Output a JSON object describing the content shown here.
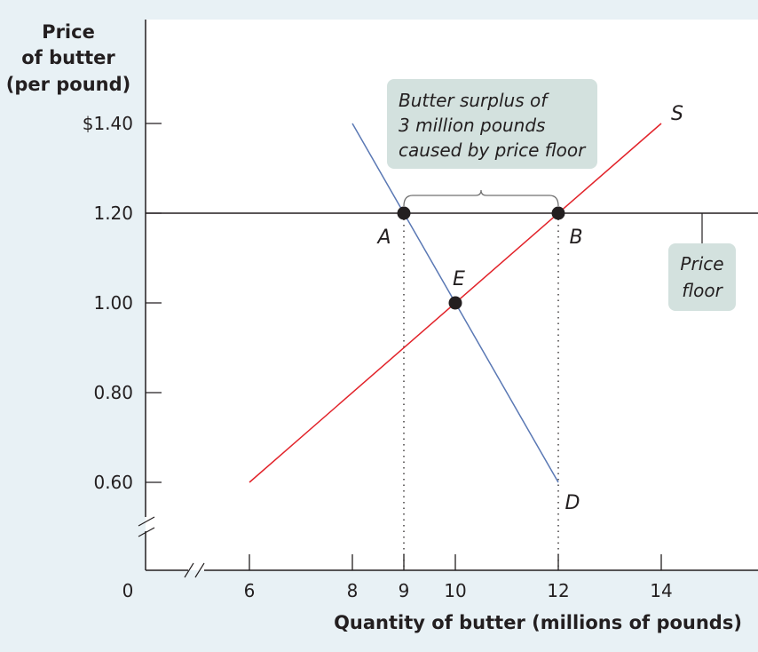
{
  "chart_data": {
    "type": "line",
    "ylabel": [
      "Price",
      "of butter",
      "(per pound)"
    ],
    "xlabel": "Quantity of butter (millions of pounds)",
    "origin_label": "0",
    "x_ticks": [
      {
        "value": 6,
        "label": "6"
      },
      {
        "value": 8,
        "label": "8"
      },
      {
        "value": 9,
        "label": "9"
      },
      {
        "value": 10,
        "label": "10"
      },
      {
        "value": 12,
        "label": "12"
      },
      {
        "value": 14,
        "label": "14"
      }
    ],
    "y_ticks": [
      {
        "value": 0.6,
        "label": "0.60"
      },
      {
        "value": 0.8,
        "label": "0.80"
      },
      {
        "value": 1.0,
        "label": "1.00"
      },
      {
        "value": 1.2,
        "label": "1.20"
      },
      {
        "value": 1.4,
        "label": "$1.40"
      }
    ],
    "xlim": [
      5,
      15.5
    ],
    "ylim": [
      0.47,
      1.6
    ],
    "axis_breaks": true,
    "grid": false,
    "series": [
      {
        "name": "D",
        "color": "#5a78b4",
        "x": [
          8,
          12
        ],
        "y": [
          1.4,
          0.6
        ]
      },
      {
        "name": "S",
        "color": "#e2232a",
        "x": [
          6,
          14
        ],
        "y": [
          0.6,
          1.4
        ]
      }
    ],
    "price_floor": {
      "value": 1.2,
      "label": [
        "Price",
        "floor"
      ]
    },
    "points": [
      {
        "label": "A",
        "x": 9,
        "y": 1.2
      },
      {
        "label": "B",
        "x": 12,
        "y": 1.2
      },
      {
        "label": "E",
        "x": 10,
        "y": 1.0
      }
    ],
    "surplus_annotation": {
      "x_from": 9,
      "x_to": 12,
      "lines": [
        "Butter surplus of",
        "3 million pounds",
        "caused by price floor"
      ]
    },
    "colors": {
      "background": "#e8f1f5",
      "plot_area": "#ffffff",
      "callout": "#d3e1de",
      "demand": "#5a78b4",
      "supply": "#e2232a",
      "ink": "#231f20"
    }
  }
}
